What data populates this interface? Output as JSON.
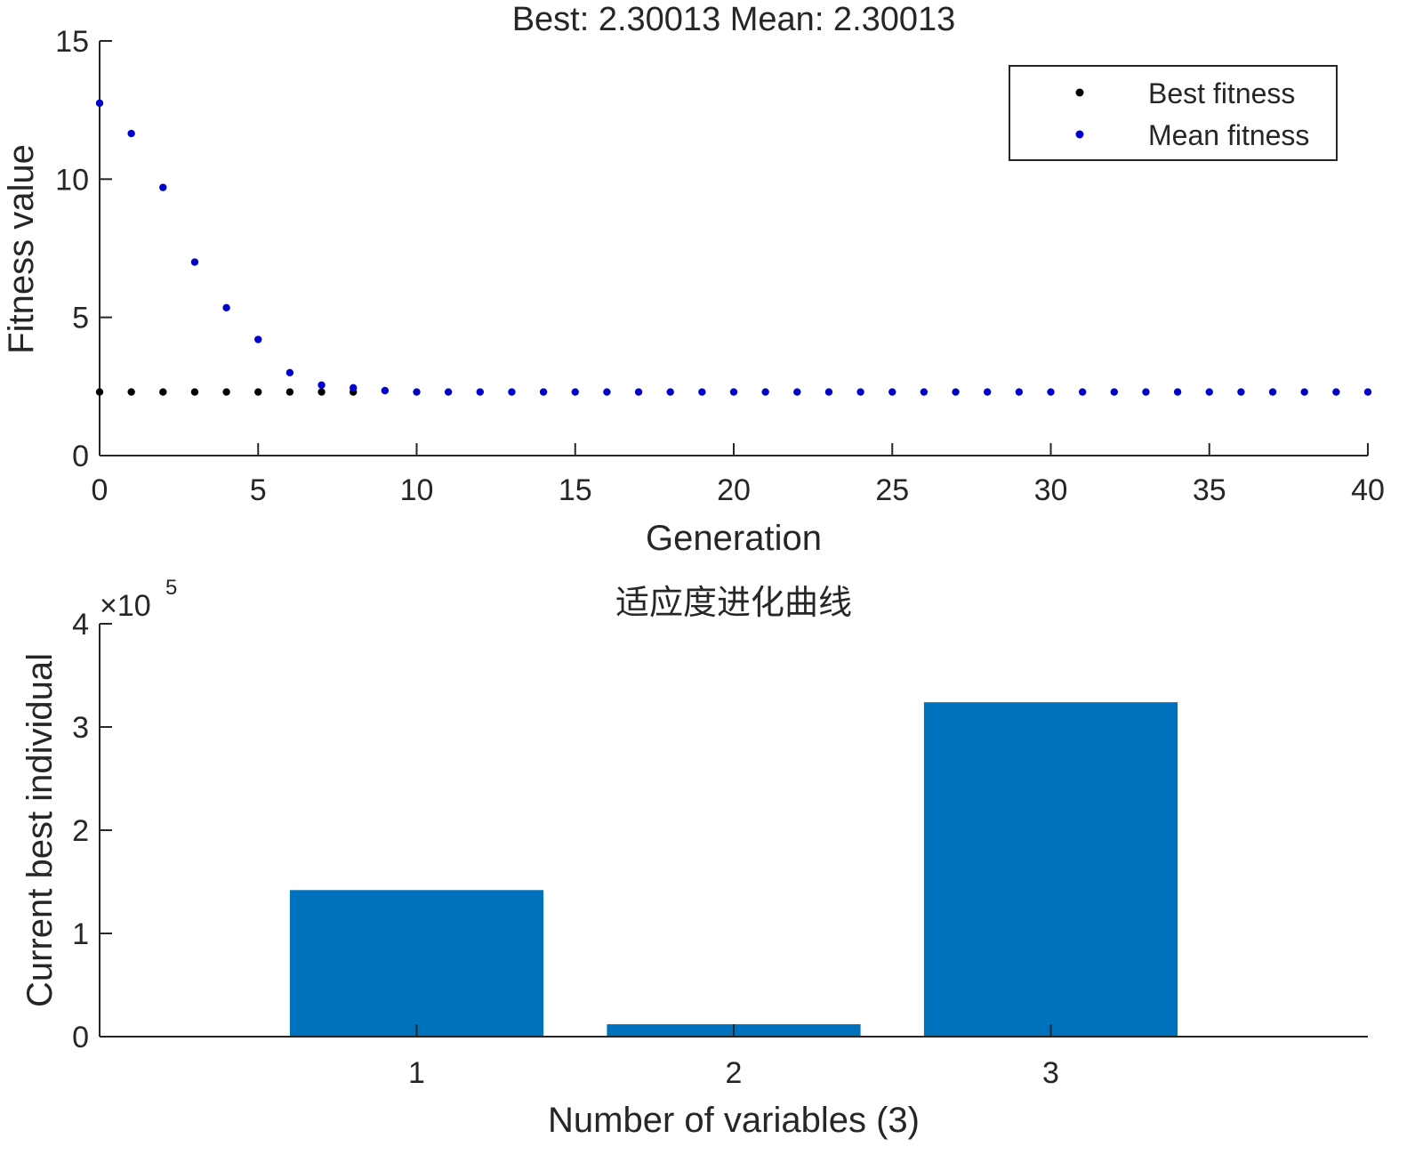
{
  "chart_data": [
    {
      "type": "scatter",
      "title": "Best: 2.30013 Mean: 2.30013",
      "xlabel": "Generation",
      "ylabel": "Fitness value",
      "xlim": [
        0,
        40
      ],
      "ylim": [
        0,
        15
      ],
      "xticks": [
        "0",
        "5",
        "10",
        "15",
        "20",
        "25",
        "30",
        "35",
        "40"
      ],
      "yticks": [
        "0",
        "5",
        "10",
        "15"
      ],
      "legend_position": "top-right",
      "series": [
        {
          "name": "Best fitness",
          "color": "#000000",
          "x": [
            0,
            1,
            2,
            3,
            4,
            5,
            6,
            7,
            8
          ],
          "y": [
            2.3,
            2.3,
            2.3,
            2.3,
            2.3,
            2.3,
            2.3,
            2.3,
            2.3
          ]
        },
        {
          "name": "Mean fitness",
          "color": "#0000cc",
          "x": [
            0,
            1,
            2,
            3,
            4,
            5,
            6,
            7,
            8,
            9,
            10,
            11,
            12,
            13,
            14,
            15,
            16,
            17,
            18,
            19,
            20,
            21,
            22,
            23,
            24,
            25,
            26,
            27,
            28,
            29,
            30,
            31,
            32,
            33,
            34,
            35,
            36,
            37,
            38,
            39,
            40
          ],
          "y": [
            12.75,
            11.65,
            9.7,
            7.0,
            5.35,
            4.2,
            3.0,
            2.55,
            2.45,
            2.35,
            2.3,
            2.3,
            2.3,
            2.3,
            2.3,
            2.3,
            2.3,
            2.3,
            2.3,
            2.3,
            2.3,
            2.3,
            2.3,
            2.3,
            2.3,
            2.3,
            2.3,
            2.3,
            2.3,
            2.3,
            2.3,
            2.3,
            2.3,
            2.3,
            2.3,
            2.3,
            2.3,
            2.3,
            2.3,
            2.3,
            2.3
          ]
        }
      ]
    },
    {
      "type": "bar",
      "title": "适应度进化曲线",
      "xlabel": "Number of variables (3)",
      "ylabel": "Current best individual",
      "scale_label": "×10",
      "scale_exponent": "5",
      "categories": [
        "1",
        "2",
        "3"
      ],
      "values": [
        1.42,
        0.12,
        3.24
      ],
      "ylim": [
        0,
        4
      ],
      "yticks": [
        "0",
        "1",
        "2",
        "3",
        "4"
      ],
      "color": "#0072bd"
    }
  ]
}
